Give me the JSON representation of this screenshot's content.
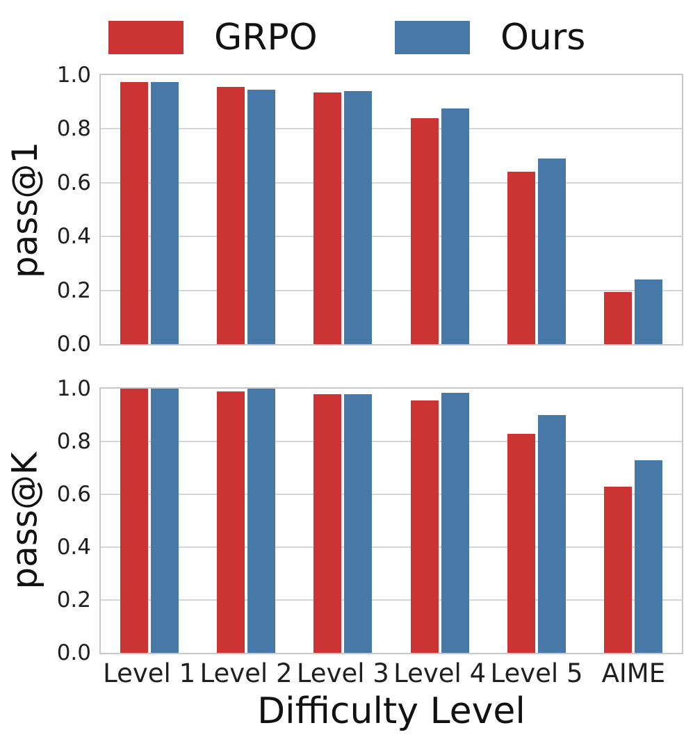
{
  "legend": {
    "position": "top",
    "items": [
      {
        "label": "GRPO",
        "color": "#cc3333"
      },
      {
        "label": "Ours",
        "color": "#4878a8"
      }
    ]
  },
  "xlabel": "Difficulty Level",
  "chart_data": [
    {
      "type": "bar",
      "panel": "top",
      "title": "",
      "ylabel": "pass@1",
      "xlabel": "",
      "categories": [
        "Level 1",
        "Level 2",
        "Level 3",
        "Level 4",
        "Level 5",
        "AIME"
      ],
      "series": [
        {
          "name": "GRPO",
          "color": "#cc3333",
          "values": [
            0.975,
            0.955,
            0.935,
            0.84,
            0.64,
            0.195
          ]
        },
        {
          "name": "Ours",
          "color": "#4878a8",
          "values": [
            0.975,
            0.945,
            0.94,
            0.875,
            0.69,
            0.24
          ]
        }
      ],
      "ylim": [
        0.0,
        1.0
      ],
      "yticks": [
        "0.0",
        "0.2",
        "0.4",
        "0.6",
        "0.8",
        "1.0"
      ],
      "grid": true,
      "legend_position": "above-figure"
    },
    {
      "type": "bar",
      "panel": "bottom",
      "title": "",
      "ylabel": "pass@K",
      "xlabel": "Difficulty Level",
      "categories": [
        "Level 1",
        "Level 2",
        "Level 3",
        "Level 4",
        "Level 5",
        "AIME"
      ],
      "series": [
        {
          "name": "GRPO",
          "color": "#cc3333",
          "values": [
            1.0,
            0.99,
            0.98,
            0.955,
            0.83,
            0.63
          ]
        },
        {
          "name": "Ours",
          "color": "#4878a8",
          "values": [
            1.0,
            1.0,
            0.98,
            0.985,
            0.9,
            0.73
          ]
        }
      ],
      "ylim": [
        0.0,
        1.0
      ],
      "yticks": [
        "0.0",
        "0.2",
        "0.4",
        "0.6",
        "0.8",
        "1.0"
      ],
      "grid": true,
      "legend_position": "none"
    }
  ]
}
